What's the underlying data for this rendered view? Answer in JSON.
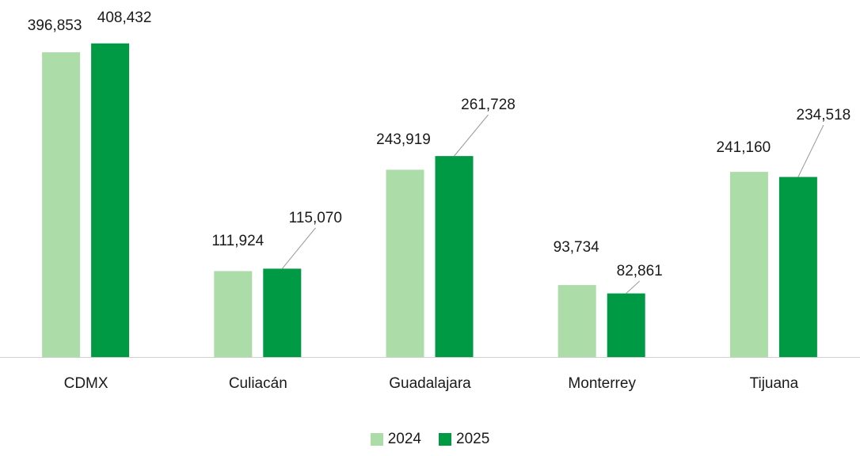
{
  "chart_data": {
    "type": "bar",
    "categories": [
      "CDMX",
      "Culiacán",
      "Guadalajara",
      "Monterrey",
      "Tijuana"
    ],
    "series": [
      {
        "name": "2024",
        "color": "#acdda8",
        "values": [
          396853,
          111924,
          243919,
          93734,
          241160
        ],
        "labels": [
          "396,853",
          "111,924",
          "243,919",
          "93,734",
          "241,160"
        ]
      },
      {
        "name": "2025",
        "color": "#009a44",
        "values": [
          408432,
          115070,
          261728,
          82861,
          234518
        ],
        "labels": [
          "408,432",
          "115,070",
          "261,728",
          "82,861",
          "234,518"
        ]
      }
    ],
    "ylim": [
      0,
      420000
    ],
    "grid": false,
    "legend_position": "bottom"
  }
}
